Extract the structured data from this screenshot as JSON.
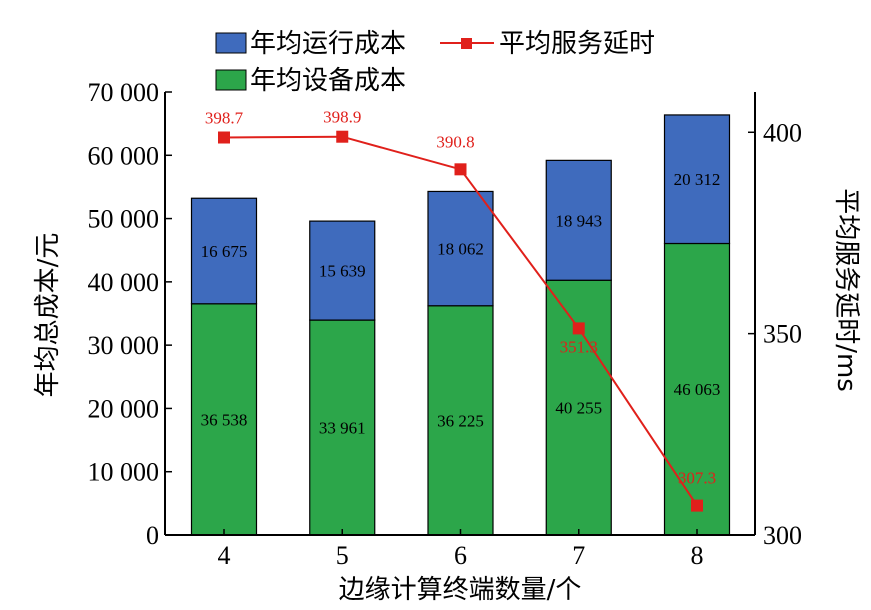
{
  "chart_data": {
    "type": "bar",
    "stacked": true,
    "categories": [
      "4",
      "5",
      "6",
      "7",
      "8"
    ],
    "xlabel": "边缘计算终端数量/个",
    "ylabel": "年均总成本/元",
    "y2label": "平均服务延时/ms",
    "ylim": [
      0,
      70000
    ],
    "y2lim": [
      300,
      410
    ],
    "yticks": [
      0,
      10000,
      20000,
      30000,
      40000,
      50000,
      60000,
      70000
    ],
    "yticklabels": [
      "0",
      "10 000",
      "20 000",
      "30 000",
      "40 000",
      "50 000",
      "60 000",
      "70 000"
    ],
    "y2ticks": [
      300,
      350,
      400
    ],
    "y2ticklabels": [
      "300",
      "350",
      "400"
    ],
    "legend_position": "top",
    "series": [
      {
        "name": "年均设备成本",
        "color": "#2ca64a",
        "values": [
          36538,
          33961,
          36225,
          40255,
          46063
        ],
        "labels": [
          "36 538",
          "33 961",
          "36 225",
          "40 255",
          "46 063"
        ]
      },
      {
        "name": "年均运行成本",
        "color": "#3f6bbd",
        "values": [
          16675,
          15639,
          18062,
          18943,
          20312
        ],
        "labels": [
          "16 675",
          "15 639",
          "18 062",
          "18 943",
          "20 312"
        ]
      }
    ],
    "line_series": {
      "name": "平均服务延时",
      "color": "#e0201b",
      "axis": "right",
      "values": [
        398.7,
        398.9,
        390.8,
        351.3,
        307.3
      ],
      "labels": [
        "398.7",
        "398.9",
        "390.8",
        "351.3",
        "307.3"
      ]
    }
  }
}
